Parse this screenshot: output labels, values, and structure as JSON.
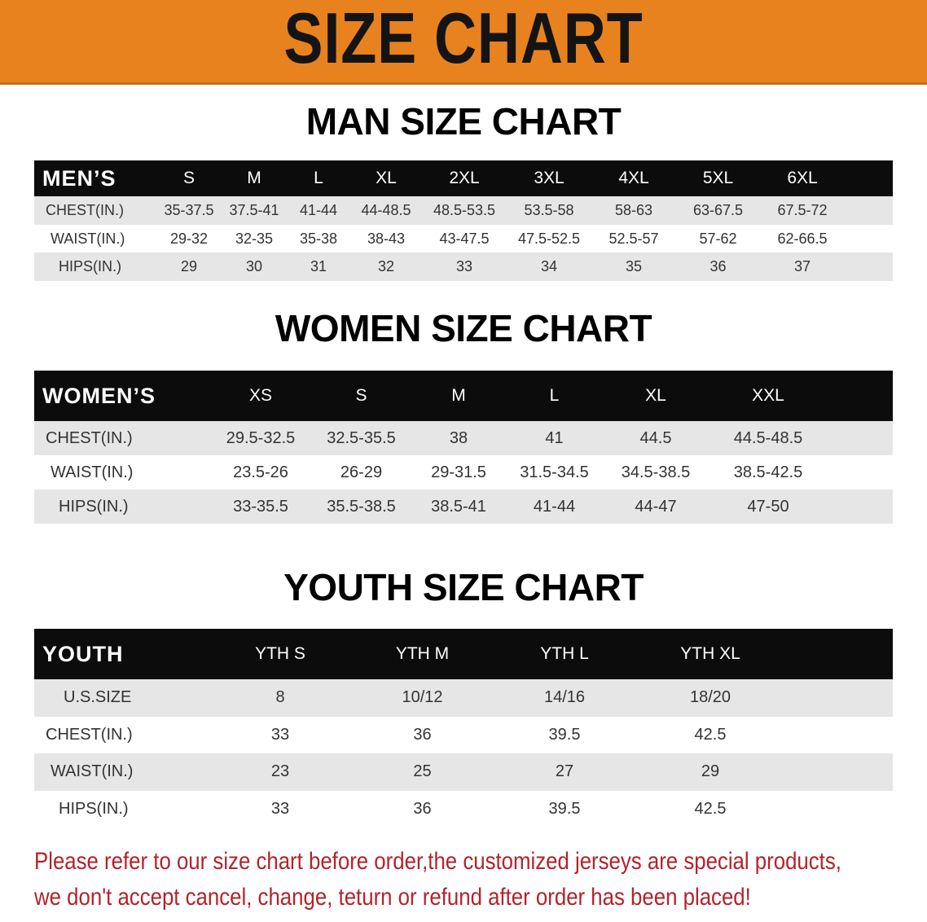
{
  "banner_title": "SIZE CHART",
  "men": {
    "title": "MAN SIZE CHART",
    "header": [
      "MEN’S",
      "S",
      "M",
      "L",
      "XL",
      "2XL",
      "3XL",
      "4XL",
      "5XL",
      "6XL"
    ],
    "rows": [
      [
        "CHEST(IN.)",
        "35-37.5",
        "37.5-41",
        "41-44",
        "44-48.5",
        "48.5-53.5",
        "53.5-58",
        "58-63",
        "63-67.5",
        "67.5-72"
      ],
      [
        "WAIST(IN.)",
        "29-32",
        "32-35",
        "35-38",
        "38-43",
        "43-47.5",
        "47.5-52.5",
        "52.5-57",
        "57-62",
        "62-66.5"
      ],
      [
        "HIPS(IN.)",
        "29",
        "30",
        "31",
        "32",
        "33",
        "34",
        "35",
        "36",
        "37"
      ]
    ]
  },
  "women": {
    "title": "WOMEN SIZE CHART",
    "header": [
      "WOMEN’S",
      "XS",
      "S",
      "M",
      "L",
      "XL",
      "XXL"
    ],
    "rows": [
      [
        "CHEST(IN.)",
        "29.5-32.5",
        "32.5-35.5",
        "38",
        "41",
        "44.5",
        "44.5-48.5"
      ],
      [
        "WAIST(IN.)",
        "23.5-26",
        "26-29",
        "29-31.5",
        "31.5-34.5",
        "34.5-38.5",
        "38.5-42.5"
      ],
      [
        "HIPS(IN.)",
        "33-35.5",
        "35.5-38.5",
        "38.5-41",
        "41-44",
        "44-47",
        "47-50"
      ]
    ]
  },
  "youth": {
    "title": "YOUTH SIZE CHART",
    "header": [
      "YOUTH",
      "YTH S",
      "YTH M",
      "YTH L",
      "YTH XL"
    ],
    "rows": [
      [
        "U.S.SIZE",
        "8",
        "10/12",
        "14/16",
        "18/20"
      ],
      [
        "CHEST(IN.)",
        "33",
        "36",
        "39.5",
        "42.5"
      ],
      [
        "WAIST(IN.)",
        "23",
        "25",
        "27",
        "29"
      ],
      [
        "HIPS(IN.)",
        "33",
        "36",
        "39.5",
        "42.5"
      ]
    ]
  },
  "footer": {
    "line1": "Please refer to our size chart before order,the customized jerseys are special products,",
    "line2": "we don't accept cancel, change, teturn or refund after order has been placed!"
  },
  "colors": {
    "banner": "#e8821f",
    "header": "#0c0c0c",
    "row_alt": "#e6e6e6",
    "notice": "#b3232b"
  }
}
